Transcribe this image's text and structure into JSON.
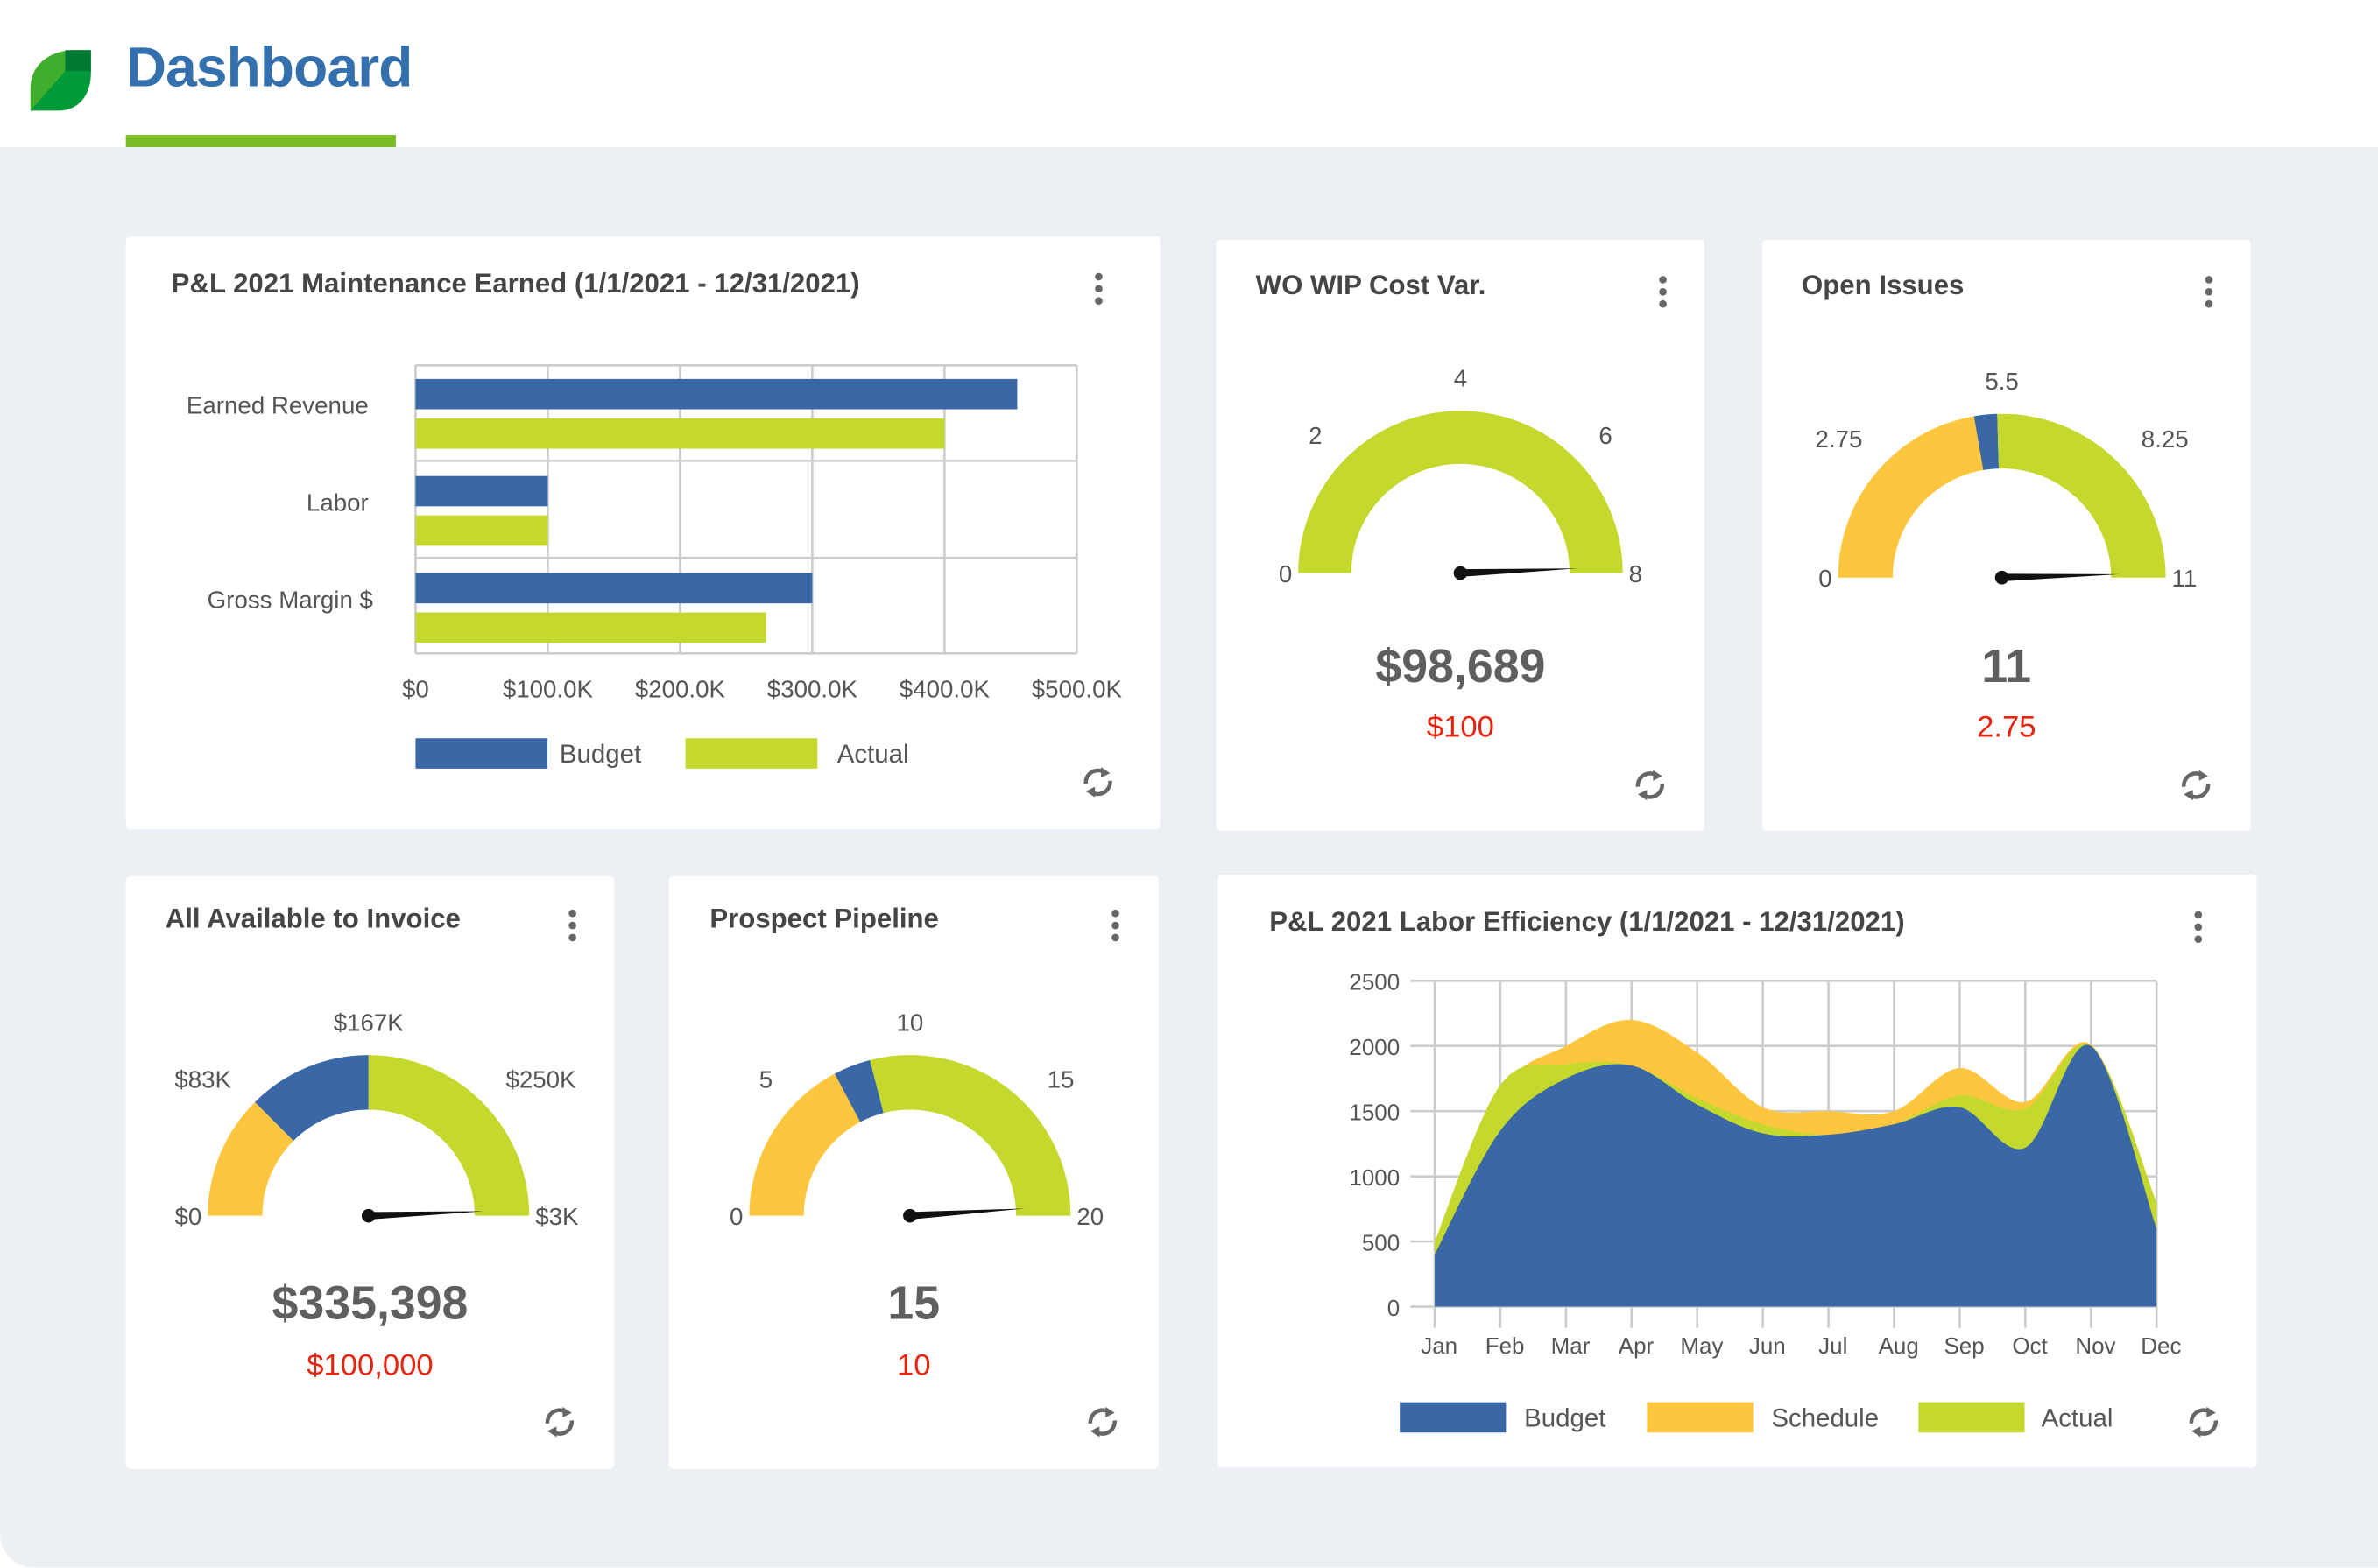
{
  "header": {
    "title": "Dashboard",
    "accent": "#78bc22",
    "title_color": "#3470ae"
  },
  "colors": {
    "budget": "#3a67a6",
    "actual": "#c4d82d",
    "schedule": "#fec63f",
    "value_red": "#e8230e"
  },
  "cards": {
    "pl_earned": {
      "title": "P&L 2021 Maintenance Earned (1/1/2021 - 12/31/2021)"
    },
    "wo_wip": {
      "title": "WO WIP Cost Var.",
      "value": "$98,689",
      "target": "$100"
    },
    "open_issues": {
      "title": "Open Issues",
      "value": "11",
      "target": "2.75"
    },
    "invoice": {
      "title": "All Available to Invoice",
      "value": "$335,398",
      "target": "$100,000"
    },
    "pipeline": {
      "title": "Prospect Pipeline",
      "value": "15",
      "target": "10"
    },
    "labor": {
      "title": "P&L 2021 Labor Efficiency  (1/1/2021 - 12/31/2021)"
    }
  },
  "chart_data": [
    {
      "id": "pl_earned",
      "type": "bar",
      "orientation": "horizontal",
      "categories": [
        "Earned Revenue",
        "Labor",
        "Gross Margin $"
      ],
      "series": [
        {
          "name": "Budget",
          "color": "#3a67a6",
          "values": [
            455000,
            100000,
            300000
          ]
        },
        {
          "name": "Actual",
          "color": "#c4d82d",
          "values": [
            400000,
            100000,
            265000
          ]
        }
      ],
      "xlim": [
        0,
        500000
      ],
      "xticks": [
        0,
        100000,
        200000,
        300000,
        400000,
        500000
      ],
      "xtick_labels": [
        "$0",
        "$100.0K",
        "$200.0K",
        "$300.0K",
        "$400.0K",
        "$500.0K"
      ],
      "grid": true,
      "legend": "bottom"
    },
    {
      "id": "wo_wip",
      "type": "gauge",
      "min": 0,
      "max": 8,
      "needle": 7.9,
      "ticks": [
        0,
        2,
        4,
        6,
        8
      ],
      "tick_labels": [
        "0",
        "2",
        "4",
        "6",
        "8"
      ],
      "bands": [
        {
          "from": 0,
          "to": 8,
          "color": "#c4d82d"
        }
      ]
    },
    {
      "id": "open_issues",
      "type": "gauge",
      "min": 0,
      "max": 11,
      "needle": 10.9,
      "ticks": [
        0,
        2.75,
        5.5,
        8.25,
        11
      ],
      "tick_labels": [
        "0",
        "2.75",
        "5.5",
        "8.25",
        "11"
      ],
      "bands": [
        {
          "from": 0,
          "to": 4.9,
          "color": "#fec63f"
        },
        {
          "from": 4.9,
          "to": 5.4,
          "color": "#3a67a6"
        },
        {
          "from": 5.4,
          "to": 11,
          "color": "#c4d82d"
        }
      ]
    },
    {
      "id": "invoice",
      "type": "gauge",
      "min": 0,
      "max": 4,
      "needle": 3.95,
      "ticks": [
        0,
        1,
        2,
        3,
        4
      ],
      "tick_labels": [
        "$0",
        "$83K",
        "$167K",
        "$250K",
        "$3K"
      ],
      "bands": [
        {
          "from": 0,
          "to": 1,
          "color": "#fec63f"
        },
        {
          "from": 1,
          "to": 2,
          "color": "#3a67a6"
        },
        {
          "from": 2,
          "to": 4,
          "color": "#c4d82d"
        }
      ]
    },
    {
      "id": "pipeline",
      "type": "gauge",
      "min": 0,
      "max": 20,
      "needle": 19.6,
      "ticks": [
        0,
        5,
        10,
        15,
        20
      ],
      "tick_labels": [
        "0",
        "5",
        "10",
        "15",
        "20"
      ],
      "bands": [
        {
          "from": 0,
          "to": 6.9,
          "color": "#fec63f"
        },
        {
          "from": 6.9,
          "to": 8.4,
          "color": "#3a67a6"
        },
        {
          "from": 8.4,
          "to": 20,
          "color": "#c4d82d"
        }
      ]
    },
    {
      "id": "labor",
      "type": "area",
      "categories": [
        "Jan",
        "Feb",
        "Mar",
        "Apr",
        "May",
        "Jun",
        "Jul",
        "Aug",
        "Sep",
        "Oct",
        "Nov",
        "Dec"
      ],
      "series": [
        {
          "name": "Schedule",
          "color": "#fec63f",
          "values": [
            450,
            1650,
            2000,
            2200,
            1950,
            1530,
            1500,
            1500,
            1830,
            1570,
            2010,
            800
          ]
        },
        {
          "name": "Actual",
          "color": "#c4d82d",
          "values": [
            500,
            1700,
            1860,
            1850,
            1600,
            1400,
            1320,
            1400,
            1620,
            1520,
            2000,
            800
          ]
        },
        {
          "name": "Budget",
          "color": "#3a67a6",
          "values": [
            400,
            1350,
            1750,
            1850,
            1550,
            1330,
            1320,
            1400,
            1530,
            1220,
            2000,
            600
          ]
        }
      ],
      "legend_order": [
        "Budget",
        "Schedule",
        "Actual"
      ],
      "ylim": [
        0,
        2500
      ],
      "yticks": [
        0,
        500,
        1000,
        1500,
        2000,
        2500
      ],
      "grid": true,
      "legend": "bottom"
    }
  ]
}
